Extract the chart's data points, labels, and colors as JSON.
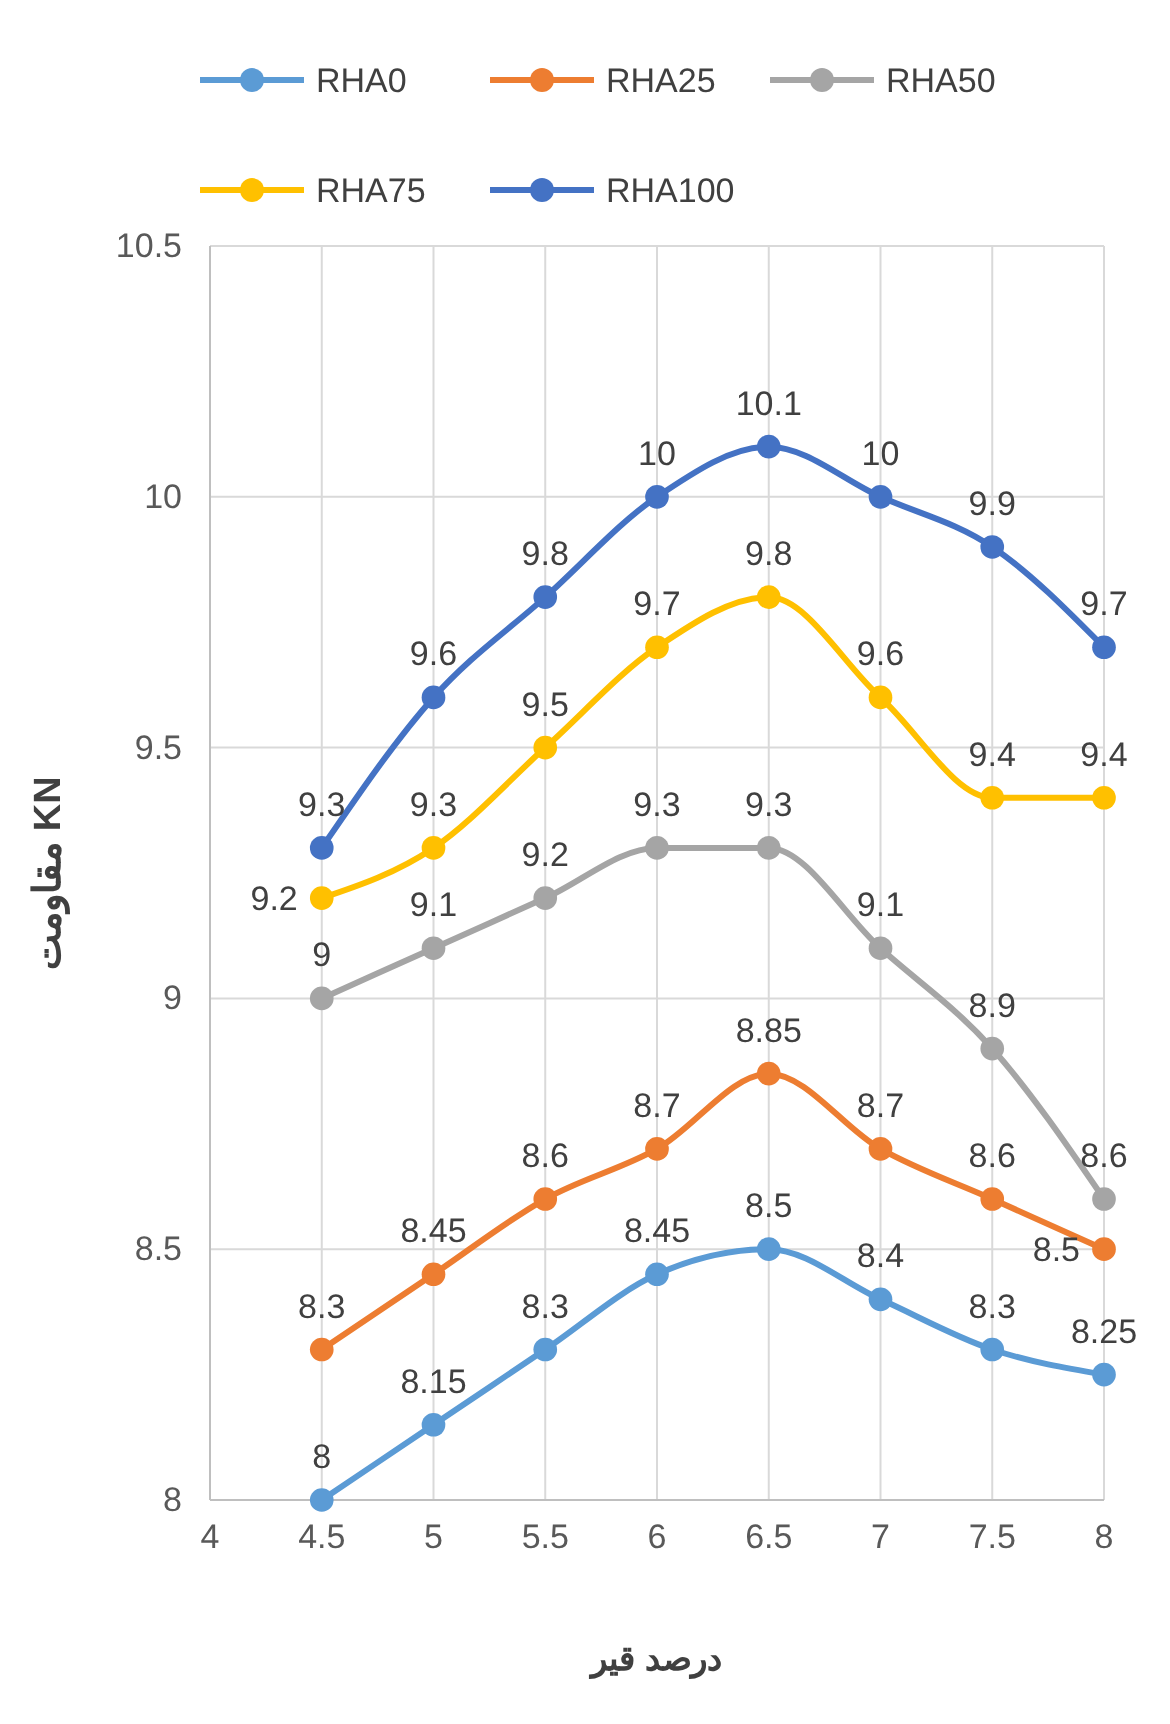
{
  "chart_data": {
    "type": "line",
    "xlabel": "درصد قیر",
    "ylabel": "مقاومت  KN",
    "x": [
      4.5,
      5,
      5.5,
      6,
      6.5,
      7,
      7.5,
      8
    ],
    "xlim": [
      4,
      8
    ],
    "xticks": [
      4,
      4.5,
      5,
      5.5,
      6,
      6.5,
      7,
      7.5,
      8
    ],
    "ylim": [
      8,
      10.5
    ],
    "yticks": [
      8,
      8.5,
      9,
      9.5,
      10,
      10.5
    ],
    "grid": true,
    "legend": "top",
    "marker": "circle",
    "line_style": "solid",
    "data_labels": true,
    "series": [
      {
        "name": "RHA0",
        "color": "#5b9bd5",
        "values": [
          8,
          8.15,
          8.3,
          8.45,
          8.5,
          8.4,
          8.3,
          8.25
        ]
      },
      {
        "name": "RHA25",
        "color": "#ed7d31",
        "values": [
          8.3,
          8.45,
          8.6,
          8.7,
          8.85,
          8.7,
          8.6,
          8.5
        ]
      },
      {
        "name": "RHA50",
        "color": "#a5a5a5",
        "values": [
          9,
          9.1,
          9.2,
          9.3,
          9.3,
          9.1,
          8.9,
          8.6
        ]
      },
      {
        "name": "RHA75",
        "color": "#ffc000",
        "values": [
          9.2,
          9.3,
          9.5,
          9.7,
          9.8,
          9.6,
          9.4,
          9.4
        ]
      },
      {
        "name": "RHA100",
        "color": "#4472c4",
        "values": [
          9.3,
          9.6,
          9.8,
          10,
          10.1,
          10,
          9.9,
          9.7
        ]
      }
    ]
  }
}
